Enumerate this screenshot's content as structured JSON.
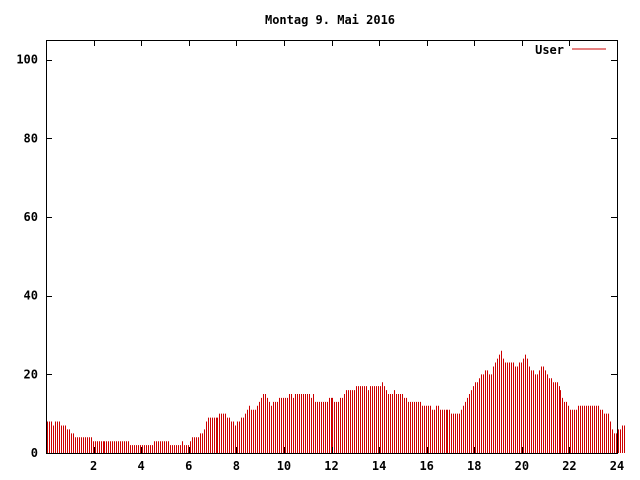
{
  "chart_data": {
    "type": "bar",
    "title": "Montag 9. Mai 2016",
    "xlabel": "",
    "ylabel": "",
    "xlim": [
      0,
      24
    ],
    "ylim": [
      0,
      105
    ],
    "x_ticks": [
      2,
      4,
      6,
      8,
      10,
      12,
      14,
      16,
      18,
      20,
      22,
      24
    ],
    "y_ticks": [
      0,
      20,
      40,
      60,
      80,
      100
    ],
    "legend_position": "top-right",
    "grid": false,
    "bin_minutes": 5,
    "series": [
      {
        "name": "User",
        "color": "#cc0000",
        "values": [
          8,
          8,
          8,
          7,
          8,
          8,
          8,
          7,
          7,
          7,
          6,
          6,
          5,
          5,
          4,
          4,
          4,
          4,
          4,
          4,
          4,
          4,
          4,
          3,
          3,
          3,
          3,
          3,
          3,
          3,
          3,
          3,
          3,
          3,
          3,
          3,
          3,
          3,
          3,
          3,
          3,
          3,
          2,
          2,
          2,
          2,
          2,
          2,
          2,
          2,
          2,
          2,
          2,
          2,
          3,
          3,
          3,
          3,
          3,
          3,
          3,
          3,
          2,
          2,
          2,
          2,
          2,
          2,
          3,
          2,
          2,
          2,
          3,
          4,
          4,
          4,
          4,
          5,
          5,
          6,
          8,
          9,
          9,
          9,
          9,
          9,
          9,
          10,
          10,
          10,
          10,
          9,
          9,
          8,
          8,
          7,
          8,
          8,
          9,
          9,
          10,
          11,
          12,
          11,
          11,
          11,
          12,
          13,
          14,
          15,
          15,
          14,
          13,
          12,
          13,
          13,
          13,
          14,
          14,
          14,
          14,
          14,
          15,
          15,
          14,
          15,
          15,
          15,
          15,
          15,
          15,
          15,
          15,
          14,
          15,
          13,
          13,
          13,
          13,
          13,
          13,
          13,
          14,
          14,
          14,
          13,
          13,
          13,
          14,
          14,
          15,
          16,
          16,
          16,
          16,
          16,
          17,
          17,
          17,
          17,
          17,
          17,
          16,
          17,
          17,
          17,
          17,
          17,
          17,
          18,
          17,
          16,
          15,
          15,
          15,
          16,
          15,
          15,
          15,
          15,
          14,
          14,
          13,
          13,
          13,
          13,
          13,
          13,
          13,
          12,
          12,
          12,
          12,
          12,
          11,
          11,
          12,
          12,
          11,
          11,
          11,
          11,
          11,
          11,
          10,
          10,
          10,
          10,
          10,
          11,
          12,
          13,
          14,
          15,
          16,
          17,
          18,
          18,
          19,
          20,
          20,
          21,
          21,
          20,
          20,
          22,
          23,
          24,
          25,
          26,
          24,
          23,
          23,
          23,
          23,
          23,
          22,
          22,
          23,
          23,
          24,
          25,
          24,
          22,
          21,
          21,
          20,
          20,
          21,
          22,
          22,
          21,
          20,
          19,
          19,
          18,
          18,
          18,
          17,
          16,
          14,
          13,
          13,
          12,
          11,
          11,
          11,
          11,
          12,
          12,
          12,
          12,
          12,
          12,
          12,
          12,
          12,
          12,
          12,
          11,
          11,
          10,
          10,
          10,
          8,
          6,
          5,
          5,
          6,
          6,
          7,
          7
        ]
      }
    ]
  },
  "colors": {
    "series": "#cc0000",
    "axis": "#000000",
    "background": "#ffffff"
  }
}
